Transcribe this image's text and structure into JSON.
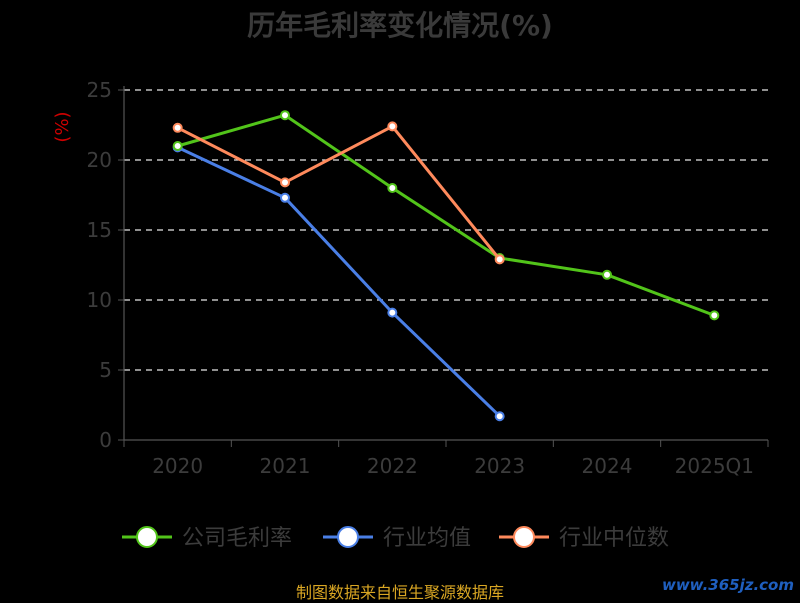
{
  "chart_data": {
    "type": "line",
    "title": "历年毛利率变化情况(%)",
    "ylabel": "(%)",
    "categories": [
      "2020",
      "2021",
      "2022",
      "2023",
      "2024",
      "2025Q1"
    ],
    "ylim": [
      0,
      25
    ],
    "yticks": [
      0,
      5,
      10,
      15,
      20,
      25
    ],
    "grid": true,
    "legend_position": "bottom",
    "series": [
      {
        "name": "公司毛利率",
        "color": "#52c41a",
        "values": [
          21.0,
          23.2,
          18.0,
          13.0,
          11.8,
          8.9
        ]
      },
      {
        "name": "行业均值",
        "color": "#4a7fe6",
        "values": [
          20.9,
          17.3,
          9.1,
          1.7,
          null,
          null
        ]
      },
      {
        "name": "行业中位数",
        "color": "#ff8a5c",
        "values": [
          22.3,
          18.4,
          22.4,
          12.9,
          null,
          null
        ]
      }
    ]
  },
  "source": "制图数据来自恒生聚源数据库",
  "watermark": "www.365jz.com"
}
